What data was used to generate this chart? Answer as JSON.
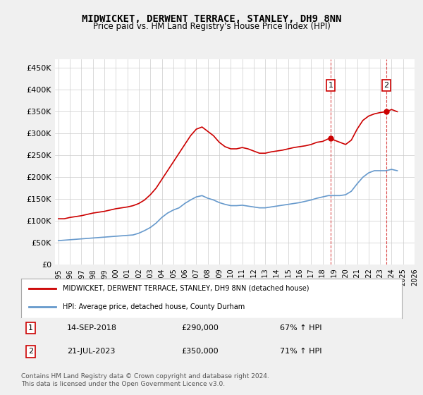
{
  "title": "MIDWICKET, DERWENT TERRACE, STANLEY, DH9 8NN",
  "subtitle": "Price paid vs. HM Land Registry's House Price Index (HPI)",
  "ylabel": "",
  "xlim_years": [
    1995,
    2026
  ],
  "ylim": [
    0,
    470000
  ],
  "yticks": [
    0,
    50000,
    100000,
    150000,
    200000,
    250000,
    300000,
    350000,
    400000,
    450000
  ],
  "ytick_labels": [
    "£0",
    "£50K",
    "£100K",
    "£150K",
    "£200K",
    "£250K",
    "£300K",
    "£350K",
    "£400K",
    "£450K"
  ],
  "xtick_years": [
    1995,
    1996,
    1997,
    1998,
    1999,
    2000,
    2001,
    2002,
    2003,
    2004,
    2005,
    2006,
    2007,
    2008,
    2009,
    2010,
    2011,
    2012,
    2013,
    2014,
    2015,
    2016,
    2017,
    2018,
    2019,
    2020,
    2021,
    2022,
    2023,
    2024,
    2025,
    2026
  ],
  "background_color": "#f0f0f0",
  "plot_bg_color": "#ffffff",
  "grid_color": "#cccccc",
  "red_color": "#cc0000",
  "blue_color": "#6699cc",
  "marker1_year": 2018.7,
  "marker1_value": 290000,
  "marker2_year": 2023.55,
  "marker2_value": 350000,
  "annotation1": {
    "label": "1",
    "date": "14-SEP-2018",
    "price": "£290,000",
    "hpi": "67% ↑ HPI"
  },
  "annotation2": {
    "label": "2",
    "date": "21-JUL-2023",
    "price": "£350,000",
    "hpi": "71% ↑ HPI"
  },
  "legend1": "MIDWICKET, DERWENT TERRACE, STANLEY, DH9 8NN (detached house)",
  "legend2": "HPI: Average price, detached house, County Durham",
  "footer": "Contains HM Land Registry data © Crown copyright and database right 2024.\nThis data is licensed under the Open Government Licence v3.0.",
  "red_line": {
    "years": [
      1995.0,
      1995.5,
      1996.0,
      1996.5,
      1997.0,
      1997.5,
      1998.0,
      1998.5,
      1999.0,
      1999.5,
      2000.0,
      2000.5,
      2001.0,
      2001.5,
      2002.0,
      2002.5,
      2003.0,
      2003.5,
      2004.0,
      2004.5,
      2005.0,
      2005.5,
      2006.0,
      2006.5,
      2007.0,
      2007.5,
      2008.0,
      2008.5,
      2009.0,
      2009.5,
      2010.0,
      2010.5,
      2011.0,
      2011.5,
      2012.0,
      2012.5,
      2013.0,
      2013.5,
      2014.0,
      2014.5,
      2015.0,
      2015.5,
      2016.0,
      2016.5,
      2017.0,
      2017.5,
      2018.0,
      2018.5,
      2018.7,
      2019.0,
      2019.5,
      2020.0,
      2020.5,
      2021.0,
      2021.5,
      2022.0,
      2022.5,
      2023.0,
      2023.5,
      2023.55,
      2024.0,
      2024.5
    ],
    "values": [
      105000,
      105000,
      108000,
      110000,
      112000,
      115000,
      118000,
      120000,
      122000,
      125000,
      128000,
      130000,
      132000,
      135000,
      140000,
      148000,
      160000,
      175000,
      195000,
      215000,
      235000,
      255000,
      275000,
      295000,
      310000,
      315000,
      305000,
      295000,
      280000,
      270000,
      265000,
      265000,
      268000,
      265000,
      260000,
      255000,
      255000,
      258000,
      260000,
      262000,
      265000,
      268000,
      270000,
      272000,
      275000,
      280000,
      282000,
      288000,
      290000,
      285000,
      280000,
      275000,
      285000,
      310000,
      330000,
      340000,
      345000,
      348000,
      350000,
      350000,
      355000,
      350000
    ]
  },
  "blue_line": {
    "years": [
      1995.0,
      1995.5,
      1996.0,
      1996.5,
      1997.0,
      1997.5,
      1998.0,
      1998.5,
      1999.0,
      1999.5,
      2000.0,
      2000.5,
      2001.0,
      2001.5,
      2002.0,
      2002.5,
      2003.0,
      2003.5,
      2004.0,
      2004.5,
      2005.0,
      2005.5,
      2006.0,
      2006.5,
      2007.0,
      2007.5,
      2008.0,
      2008.5,
      2009.0,
      2009.5,
      2010.0,
      2010.5,
      2011.0,
      2011.5,
      2012.0,
      2012.5,
      2013.0,
      2013.5,
      2014.0,
      2014.5,
      2015.0,
      2015.5,
      2016.0,
      2016.5,
      2017.0,
      2017.5,
      2018.0,
      2018.5,
      2019.0,
      2019.5,
      2020.0,
      2020.5,
      2021.0,
      2021.5,
      2022.0,
      2022.5,
      2023.0,
      2023.5,
      2024.0,
      2024.5
    ],
    "values": [
      55000,
      56000,
      57000,
      58000,
      59000,
      60000,
      61000,
      62000,
      63000,
      64000,
      65000,
      66000,
      67000,
      68000,
      72000,
      78000,
      85000,
      95000,
      108000,
      118000,
      125000,
      130000,
      140000,
      148000,
      155000,
      158000,
      152000,
      148000,
      142000,
      138000,
      135000,
      135000,
      136000,
      134000,
      132000,
      130000,
      130000,
      132000,
      134000,
      136000,
      138000,
      140000,
      142000,
      145000,
      148000,
      152000,
      155000,
      158000,
      158000,
      158000,
      160000,
      168000,
      185000,
      200000,
      210000,
      215000,
      215000,
      215000,
      218000,
      215000
    ]
  }
}
